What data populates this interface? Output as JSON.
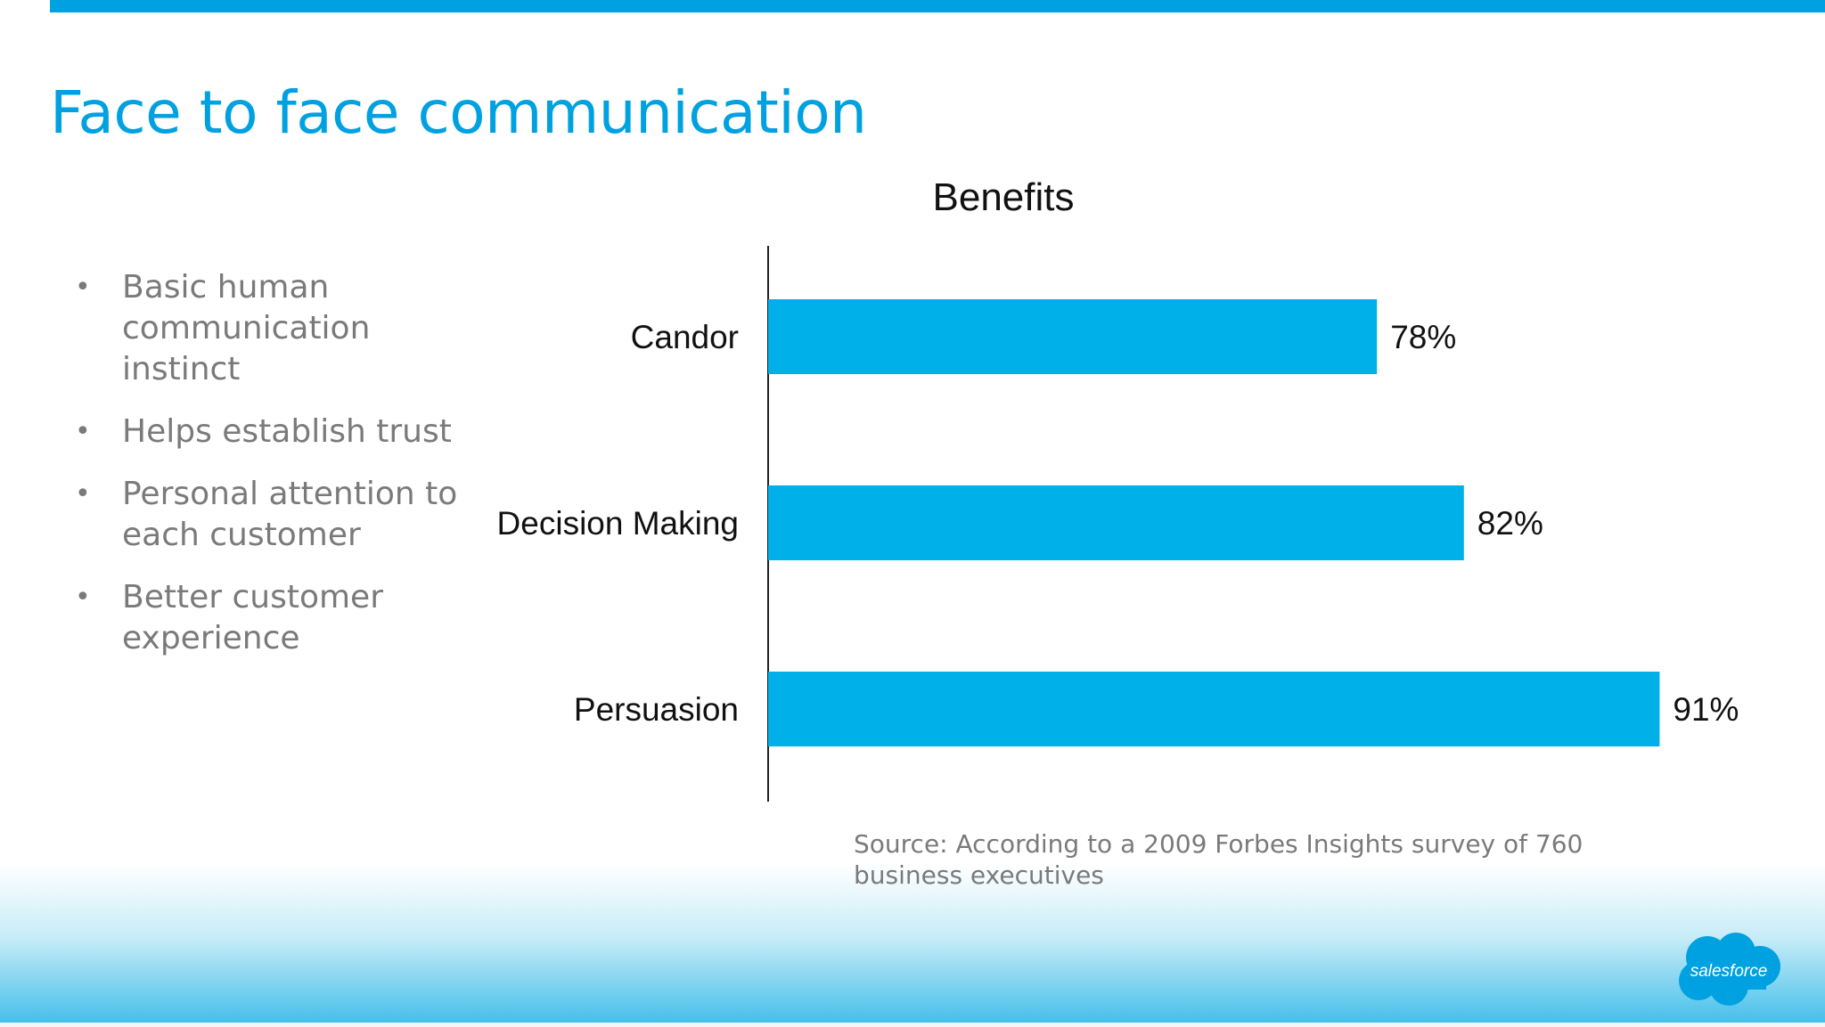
{
  "slide": {
    "title": "Face to face communication",
    "bullets": [
      "Basic human communication instinct",
      "Helps establish trust",
      "Personal attention to each customer",
      "Better customer experience"
    ],
    "source": "Source: According to a 2009 Forbes Insights survey of 760 business executives",
    "logo_text": "salesforce",
    "colors": {
      "accent": "#00a1e0",
      "bar": "#00b0e8",
      "text_gray": "#7a7a7a"
    }
  },
  "chart_data": {
    "type": "bar",
    "orientation": "horizontal",
    "title": "Benefits",
    "categories": [
      "Candor",
      "Decision Making",
      "Persuasion"
    ],
    "values": [
      78,
      82,
      91
    ],
    "value_labels": [
      "78%",
      "82%",
      "91%"
    ],
    "xlim": [
      50,
      100
    ],
    "grid": false,
    "legend": "none"
  }
}
